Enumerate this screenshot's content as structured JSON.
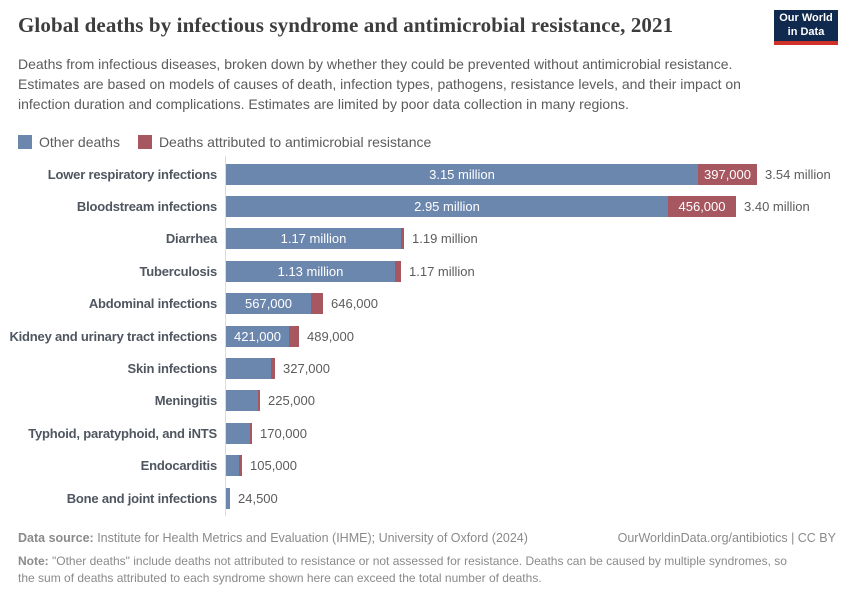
{
  "header": {
    "title": "Global deaths by infectious syndrome and antimicrobial resistance, 2021",
    "subtitle": "Deaths from infectious diseases, broken down by whether they could be prevented without antimicrobial resistance. Estimates are based on models of causes of death, infection types, pathogens, resistance levels, and their impact on infection duration and complications. Estimates are limited by poor data collection in many regions.",
    "logo": {
      "line1": "Our World",
      "line2": "in Data"
    }
  },
  "legend": [
    {
      "label": "Other deaths",
      "color": "#6c87ae"
    },
    {
      "label": "Deaths attributed to antimicrobial resistance",
      "color": "#a6575f"
    }
  ],
  "chart_data": {
    "type": "bar",
    "orientation": "horizontal",
    "title": "Global deaths by infectious syndrome and antimicrobial resistance, 2021",
    "unit": "deaths, values in millions",
    "xlim": [
      0,
      3.6
    ],
    "grid": false,
    "legend_position": "top",
    "colors": {
      "other": "#6c87ae",
      "amr": "#a6575f"
    },
    "series_names": [
      "Other deaths",
      "Deaths attributed to antimicrobial resistance"
    ],
    "categories": [
      "Lower respiratory infections",
      "Bloodstream infections",
      "Diarrhea",
      "Tuberculosis",
      "Abdominal infections",
      "Kidney and urinary tract infections",
      "Skin infections",
      "Meningitis",
      "Typhoid, paratyphoid, and iNTS",
      "Endocarditis",
      "Bone and joint infections"
    ],
    "rows": [
      {
        "category": "Lower respiratory infections",
        "other": 3.15,
        "other_label": "3.15 million",
        "amr": 0.397,
        "amr_label": "397,000",
        "total": 3.54,
        "total_label": "3.54 million"
      },
      {
        "category": "Bloodstream infections",
        "other": 2.95,
        "other_label": "2.95 million",
        "amr": 0.456,
        "amr_label": "456,000",
        "total": 3.4,
        "total_label": "3.40 million"
      },
      {
        "category": "Diarrhea",
        "other": 1.17,
        "other_label": "1.17 million",
        "amr": 0.02,
        "amr_label": null,
        "total": 1.19,
        "total_label": "1.19 million"
      },
      {
        "category": "Tuberculosis",
        "other": 1.13,
        "other_label": "1.13 million",
        "amr": 0.04,
        "amr_label": null,
        "total": 1.17,
        "total_label": "1.17 million"
      },
      {
        "category": "Abdominal infections",
        "other": 0.567,
        "other_label": "567,000",
        "amr": 0.079,
        "amr_label": null,
        "total": 0.646,
        "total_label": "646,000"
      },
      {
        "category": "Kidney and urinary tract infections",
        "other": 0.421,
        "other_label": "421,000",
        "amr": 0.068,
        "amr_label": null,
        "total": 0.489,
        "total_label": "489,000"
      },
      {
        "category": "Skin infections",
        "other": 0.302,
        "other_label": null,
        "amr": 0.025,
        "amr_label": null,
        "total": 0.327,
        "total_label": "327,000"
      },
      {
        "category": "Meningitis",
        "other": 0.213,
        "other_label": null,
        "amr": 0.012,
        "amr_label": null,
        "total": 0.225,
        "total_label": "225,000"
      },
      {
        "category": "Typhoid, paratyphoid, and iNTS",
        "other": 0.158,
        "other_label": null,
        "amr": 0.012,
        "amr_label": null,
        "total": 0.17,
        "total_label": "170,000"
      },
      {
        "category": "Endocarditis",
        "other": 0.087,
        "other_label": null,
        "amr": 0.018,
        "amr_label": null,
        "total": 0.105,
        "total_label": "105,000"
      },
      {
        "category": "Bone and joint infections",
        "other": 0.0245,
        "other_label": null,
        "amr": 0,
        "amr_label": null,
        "total": 0.0245,
        "total_label": "24,500"
      }
    ]
  },
  "footer": {
    "datasource_prefix": "Data source:",
    "datasource_text": " Institute for Health Metrics and Evaluation (IHME); University of Oxford (2024)",
    "attribution": "OurWorldinData.org/antibiotics | CC BY",
    "note_prefix": "Note:",
    "note_text": " \"Other deaths\" include deaths not attributed to resistance or not assessed for resistance. Deaths can be caused by multiple syndromes, so the sum of deaths attributed to each syndrome shown here can exceed the total number of deaths."
  }
}
